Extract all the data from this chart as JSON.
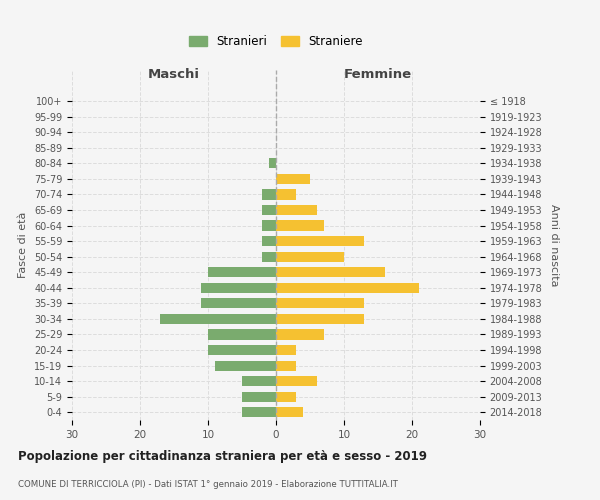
{
  "age_groups": [
    "0-4",
    "5-9",
    "10-14",
    "15-19",
    "20-24",
    "25-29",
    "30-34",
    "35-39",
    "40-44",
    "45-49",
    "50-54",
    "55-59",
    "60-64",
    "65-69",
    "70-74",
    "75-79",
    "80-84",
    "85-89",
    "90-94",
    "95-99",
    "100+"
  ],
  "birth_years": [
    "2014-2018",
    "2009-2013",
    "2004-2008",
    "1999-2003",
    "1994-1998",
    "1989-1993",
    "1984-1988",
    "1979-1983",
    "1974-1978",
    "1969-1973",
    "1964-1968",
    "1959-1963",
    "1954-1958",
    "1949-1953",
    "1944-1948",
    "1939-1943",
    "1934-1938",
    "1929-1933",
    "1924-1928",
    "1919-1923",
    "≤ 1918"
  ],
  "males": [
    5,
    5,
    5,
    9,
    10,
    10,
    17,
    11,
    11,
    10,
    2,
    2,
    2,
    2,
    2,
    0,
    1,
    0,
    0,
    0,
    0
  ],
  "females": [
    4,
    3,
    6,
    3,
    3,
    7,
    13,
    13,
    21,
    16,
    10,
    13,
    7,
    6,
    3,
    5,
    0,
    0,
    0,
    0,
    0
  ],
  "male_color": "#7aab6e",
  "female_color": "#f5c131",
  "background_color": "#f5f5f5",
  "grid_color": "#dddddd",
  "title": "Popolazione per cittadinanza straniera per età e sesso - 2019",
  "subtitle": "COMUNE DI TERRICCIOLA (PI) - Dati ISTAT 1° gennaio 2019 - Elaborazione TUTTITALIA.IT",
  "xlabel_left": "Maschi",
  "xlabel_right": "Femmine",
  "ylabel_left": "Fasce di età",
  "ylabel_right": "Anni di nascita",
  "xlim": 30,
  "legend_stranieri": "Stranieri",
  "legend_straniere": "Straniere"
}
